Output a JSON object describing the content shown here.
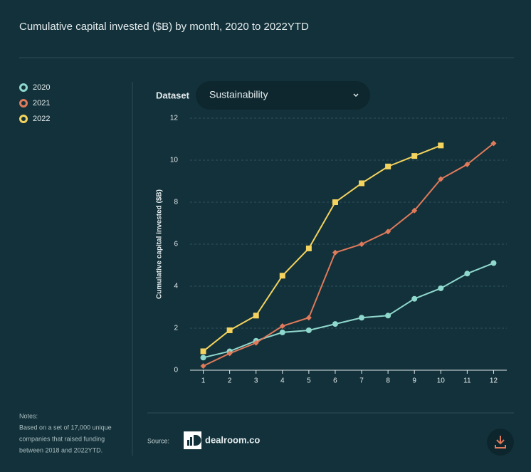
{
  "header": {
    "title": "Cumulative capital invested ($B) by month, 2020 to 2022YTD"
  },
  "controls": {
    "dataset_label": "Dataset",
    "dataset_value": "Sustainability"
  },
  "chart_data": {
    "type": "line",
    "y_label": "Cumulative capital invested ($B)",
    "x": [
      1,
      2,
      3,
      4,
      5,
      6,
      7,
      8,
      9,
      10,
      11,
      12
    ],
    "xlim": [
      0.5,
      12.5
    ],
    "xticks": [
      1,
      2,
      3,
      4,
      5,
      6,
      7,
      8,
      9,
      10,
      11,
      12
    ],
    "ylim": [
      0,
      12
    ],
    "yticks": [
      0,
      2,
      4,
      6,
      8,
      10,
      12
    ],
    "grid": true,
    "series": [
      {
        "name": "2020",
        "color": "#8fd8cd",
        "marker": "circle",
        "values": [
          0.6,
          0.9,
          1.4,
          1.8,
          1.9,
          2.2,
          2.5,
          2.6,
          3.4,
          3.9,
          4.6,
          5.1
        ]
      },
      {
        "name": "2021",
        "color": "#e07a5a",
        "marker": "diamond",
        "values": [
          0.2,
          0.8,
          1.3,
          2.1,
          2.5,
          5.6,
          6.0,
          6.6,
          7.6,
          9.1,
          9.8,
          10.8
        ]
      },
      {
        "name": "2022",
        "color": "#f4d35e",
        "marker": "square",
        "values": [
          0.9,
          1.9,
          2.6,
          4.5,
          5.8,
          8.0,
          8.9,
          9.7,
          10.2,
          10.7,
          null,
          null
        ]
      }
    ]
  },
  "notes": {
    "label": "Notes:",
    "lines": [
      "Based on a set of 17,000 unique",
      "companies that raised funding",
      "between 2018 and 2022YTD."
    ]
  },
  "footer": {
    "source_label": "Source:",
    "brand": "dealroom.co"
  }
}
